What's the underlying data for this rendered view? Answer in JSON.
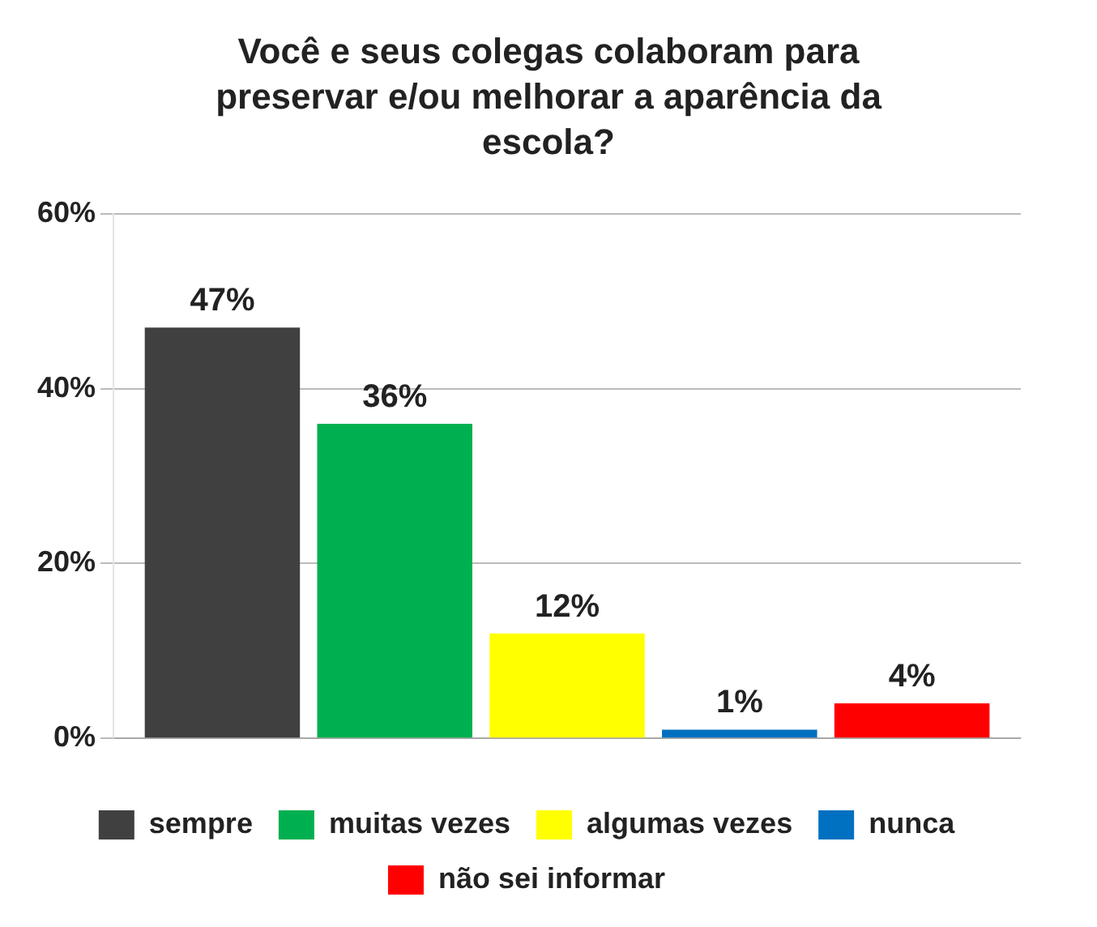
{
  "chart_data": {
    "type": "bar",
    "title": "Você e seus colegas colaboram para preservar e/ou melhorar a aparência da escola?",
    "categories": [
      null
    ],
    "series": [
      {
        "name": "sempre",
        "color": "#404040",
        "values": [
          47
        ],
        "value_labels": [
          "47%"
        ]
      },
      {
        "name": "muitas vezes",
        "color": "#00b050",
        "values": [
          36
        ],
        "value_labels": [
          "36%"
        ]
      },
      {
        "name": "algumas vezes",
        "color": "#ffff00",
        "values": [
          12
        ],
        "value_labels": [
          "12%"
        ]
      },
      {
        "name": "nunca",
        "color": "#0070c0",
        "values": [
          1
        ],
        "value_labels": [
          "1%"
        ]
      },
      {
        "name": "não sei informar",
        "color": "#ff0000",
        "values": [
          4
        ],
        "value_labels": [
          "4%"
        ]
      }
    ],
    "ylim": [
      0,
      60
    ],
    "yticks": [
      {
        "value": 0,
        "label": "0%"
      },
      {
        "value": 20,
        "label": "20%"
      },
      {
        "value": 40,
        "label": "40%"
      },
      {
        "value": 60,
        "label": "60%"
      }
    ],
    "grid": "y",
    "legend": "bottom"
  }
}
